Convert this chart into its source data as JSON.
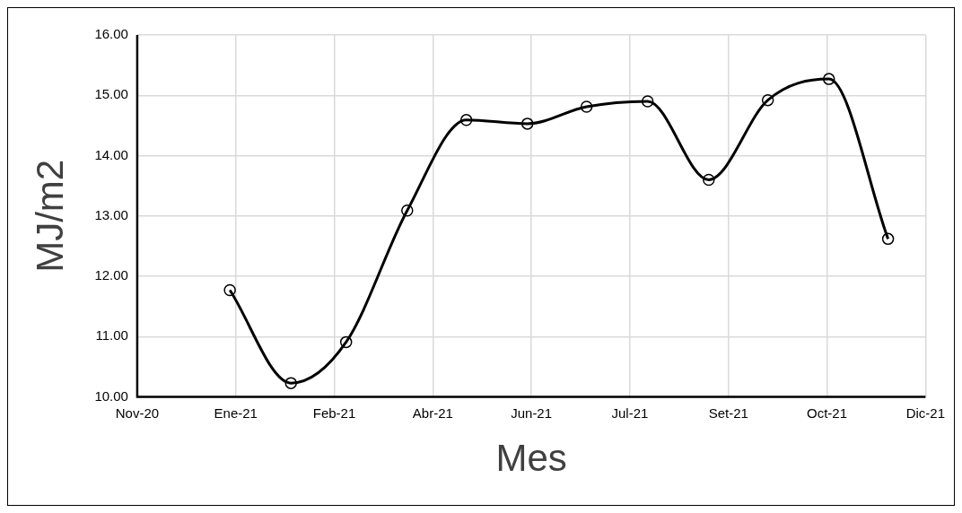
{
  "chart_data": {
    "type": "line",
    "xlabel": "Mes",
    "ylabel": "MJ/m2",
    "x": [
      "2021-01-01",
      "2021-02-01",
      "2021-03-01",
      "2021-04-01",
      "2021-05-01",
      "2021-06-01",
      "2021-07-01",
      "2021-08-01",
      "2021-09-01",
      "2021-10-01",
      "2021-11-01",
      "2021-12-01"
    ],
    "series": [
      {
        "color": "#000000",
        "values": [
          11.77,
          10.23,
          10.91,
          13.09,
          14.59,
          14.53,
          14.81,
          14.9,
          13.6,
          14.92,
          15.27,
          12.62
        ]
      }
    ],
    "xlim": [
      "2020-11-15",
      "2021-12-20"
    ],
    "xticks": [
      {
        "value": "2020-11-15",
        "label": "Nov-20"
      },
      {
        "value": "2021-01-04",
        "label": "Ene-21"
      },
      {
        "value": "2021-02-23",
        "label": "Feb-21"
      },
      {
        "value": "2021-04-14",
        "label": "Abr-21"
      },
      {
        "value": "2021-06-03",
        "label": "Jun-21"
      },
      {
        "value": "2021-07-23",
        "label": "Jul-21"
      },
      {
        "value": "2021-09-11",
        "label": "Set-21"
      },
      {
        "value": "2021-10-31",
        "label": "Oct-21"
      },
      {
        "value": "2021-12-20",
        "label": "Dic-21"
      }
    ],
    "ylim": [
      10,
      16
    ],
    "yticks": [
      {
        "value": 10,
        "label": "10.00"
      },
      {
        "value": 11,
        "label": "11.00"
      },
      {
        "value": 12,
        "label": "12.00"
      },
      {
        "value": 13,
        "label": "13.00"
      },
      {
        "value": 14,
        "label": "14.00"
      },
      {
        "value": 15,
        "label": "15.00"
      },
      {
        "value": 16,
        "label": "16.00"
      }
    ],
    "grid": true,
    "legend": false,
    "marker": "circle",
    "line_style": "solid"
  }
}
